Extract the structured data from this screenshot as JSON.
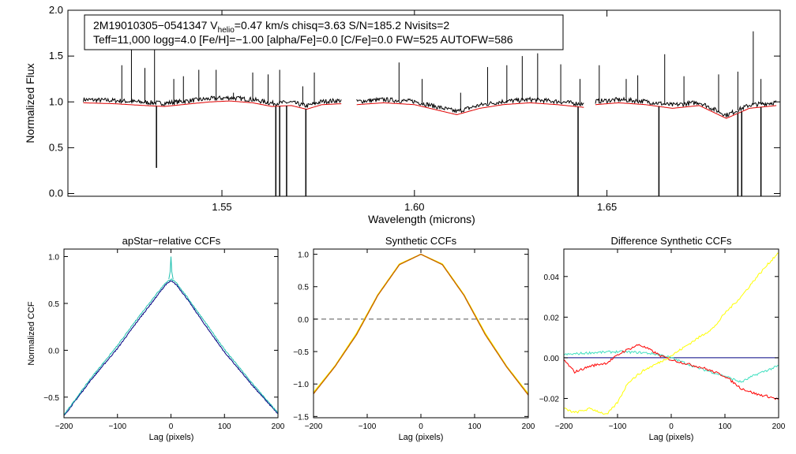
{
  "chart_data": [
    {
      "id": "spectrum",
      "type": "line",
      "title": "",
      "xlabel": "Wavelength (microns)",
      "ylabel": "Normalized Flux",
      "xlim": [
        1.51,
        1.695
      ],
      "ylim": [
        -0.03,
        2.0
      ],
      "xticks": [
        1.55,
        1.6,
        1.65
      ],
      "xtick_labels": [
        "1.55",
        "1.60",
        "1.65"
      ],
      "yticks": [
        0.0,
        0.5,
        1.0,
        1.5,
        2.0
      ],
      "ytick_labels": [
        "0.0",
        "0.5",
        "1.0",
        "1.5",
        "2.0"
      ],
      "info_box": {
        "line1": "2M19010305−0541347  V",
        "line1_sub": "helio",
        "line1_rest": "=0.47 km/s  chisq=3.63  S/N=185.2  Nvisits=2",
        "line2": "Teff=11,000 logg=4.0 [Fe/H]=−1.00 [alpha/Fe]=0.0 [C/Fe]=0.0 FW=525 AUTOFW=586"
      },
      "detector_ranges": [
        [
          1.514,
          1.581
        ],
        [
          1.585,
          1.644
        ],
        [
          1.647,
          1.694
        ]
      ],
      "model_continuum_points": {
        "x": [
          1.514,
          1.522,
          1.53,
          1.535,
          1.542,
          1.547,
          1.552,
          1.558,
          1.563,
          1.568,
          1.572,
          1.576,
          1.581,
          1.585,
          1.592,
          1.6,
          1.605,
          1.611,
          1.617,
          1.623,
          1.63,
          1.637,
          1.644,
          1.647,
          1.653,
          1.66,
          1.667,
          1.674,
          1.681,
          1.687,
          1.694
        ],
        "flux": [
          0.99,
          0.98,
          0.96,
          0.95,
          0.98,
          1.0,
          1.01,
          0.99,
          0.95,
          0.96,
          0.92,
          0.97,
          0.98,
          0.97,
          0.99,
          0.97,
          0.92,
          0.86,
          0.93,
          0.97,
          0.99,
          0.97,
          0.94,
          0.97,
          0.99,
          0.97,
          0.93,
          0.96,
          0.82,
          0.93,
          0.96
        ]
      },
      "series": [
        {
          "name": "observed",
          "color": "#000000"
        },
        {
          "name": "model",
          "color": "#e00000"
        }
      ],
      "emission_spikes": [
        {
          "x": 1.524,
          "flux": 1.4
        },
        {
          "x": 1.5265,
          "flux": 1.57
        },
        {
          "x": 1.53,
          "flux": 1.37
        },
        {
          "x": 1.5325,
          "flux": 1.65
        },
        {
          "x": 1.5375,
          "flux": 1.25
        },
        {
          "x": 1.54,
          "flux": 1.28
        },
        {
          "x": 1.544,
          "flux": 1.35
        },
        {
          "x": 1.5485,
          "flux": 1.35
        },
        {
          "x": 1.553,
          "flux": 1.1
        },
        {
          "x": 1.558,
          "flux": 1.32
        },
        {
          "x": 1.562,
          "flux": 1.3
        },
        {
          "x": 1.565,
          "flux": 1.35
        },
        {
          "x": 1.571,
          "flux": 1.17
        },
        {
          "x": 1.574,
          "flux": 1.32
        },
        {
          "x": 1.596,
          "flux": 1.43
        },
        {
          "x": 1.602,
          "flux": 1.25
        },
        {
          "x": 1.612,
          "flux": 1.1
        },
        {
          "x": 1.619,
          "flux": 1.38
        },
        {
          "x": 1.624,
          "flux": 1.4
        },
        {
          "x": 1.628,
          "flux": 1.5
        },
        {
          "x": 1.632,
          "flux": 1.53
        },
        {
          "x": 1.638,
          "flux": 1.41
        },
        {
          "x": 1.643,
          "flux": 1.25
        },
        {
          "x": 1.648,
          "flux": 1.4
        },
        {
          "x": 1.655,
          "flux": 1.25
        },
        {
          "x": 1.658,
          "flux": 1.29
        },
        {
          "x": 1.665,
          "flux": 1.52
        },
        {
          "x": 1.67,
          "flux": 1.28
        },
        {
          "x": 1.679,
          "flux": 1.3
        },
        {
          "x": 1.684,
          "flux": 1.33
        },
        {
          "x": 1.688,
          "flux": 1.77
        },
        {
          "x": 1.69,
          "flux": 1.25
        }
      ],
      "absorption_spikes": [
        {
          "x": 1.533,
          "flux": 0.28
        },
        {
          "x": 1.564,
          "flux": -0.05
        },
        {
          "x": 1.565,
          "flux": -0.05
        },
        {
          "x": 1.5668,
          "flux": -0.05
        },
        {
          "x": 1.5718,
          "flux": -0.05
        },
        {
          "x": 1.6425,
          "flux": -0.05
        },
        {
          "x": 1.6635,
          "flux": -0.05
        },
        {
          "x": 1.684,
          "flux": -0.05
        },
        {
          "x": 1.685,
          "flux": -0.05
        },
        {
          "x": 1.69,
          "flux": -0.05
        }
      ]
    },
    {
      "id": "apstar-ccf",
      "type": "line",
      "title": "apStar−relative CCFs",
      "xlabel": "Lag (pixels)",
      "ylabel": "Normalized CCF",
      "xlim": [
        -200,
        200
      ],
      "ylim": [
        -0.72,
        1.08
      ],
      "xticks": [
        -200,
        -100,
        0,
        100,
        200
      ],
      "xtick_labels": [
        "−200",
        "−100",
        "0",
        "100",
        "200"
      ],
      "yticks": [
        -0.5,
        0.0,
        0.5,
        1.0
      ],
      "ytick_labels": [
        "−0.5",
        "0.0",
        "0.5",
        "1.0"
      ],
      "series": [
        {
          "name": "visit-1",
          "color": "#000080",
          "x": [
            -200,
            -150,
            -100,
            -60,
            -30,
            -10,
            0,
            10,
            30,
            60,
            100,
            150,
            200
          ],
          "y": [
            -0.7,
            -0.32,
            0.02,
            0.33,
            0.55,
            0.7,
            0.74,
            0.7,
            0.55,
            0.3,
            -0.02,
            -0.36,
            -0.68
          ]
        },
        {
          "name": "visit-2",
          "color": "#20c0b0",
          "x": [
            -200,
            -150,
            -100,
            -60,
            -30,
            -10,
            0,
            10,
            30,
            60,
            100,
            150,
            200
          ],
          "y": [
            -0.69,
            -0.3,
            0.05,
            0.36,
            0.58,
            0.72,
            0.76,
            0.72,
            0.57,
            0.33,
            0.01,
            -0.34,
            -0.67
          ]
        }
      ],
      "peak_spike": {
        "x": 0,
        "y": 1.0
      }
    },
    {
      "id": "synthetic-ccf",
      "type": "line",
      "title": "Synthetic CCFs",
      "xlabel": "Lag (pixels)",
      "ylabel": "",
      "xlim": [
        -200,
        200
      ],
      "ylim": [
        -1.52,
        1.08
      ],
      "xticks": [
        -200,
        -100,
        0,
        100,
        200
      ],
      "xtick_labels": [
        "−200",
        "−100",
        "0",
        "100",
        "200"
      ],
      "yticks": [
        -1.5,
        -1.0,
        -0.5,
        0.0,
        0.5,
        1.0
      ],
      "ytick_labels": [
        "−1.5",
        "−1.0",
        "−0.5",
        "0.0",
        "0.5",
        "1.0"
      ],
      "zero_line": 0.0,
      "series": [
        {
          "name": "synthetic-1",
          "color": "#ffff00",
          "x": [
            -200,
            -160,
            -120,
            -80,
            -40,
            0,
            40,
            80,
            120,
            160,
            200
          ],
          "y": [
            -1.13,
            -0.72,
            -0.22,
            0.38,
            0.85,
            1.0,
            0.85,
            0.38,
            -0.22,
            -0.73,
            -1.15
          ]
        },
        {
          "name": "synthetic-2",
          "color": "#c86400",
          "x": [
            -200,
            -160,
            -120,
            -80,
            -40,
            0,
            40,
            80,
            120,
            160,
            200
          ],
          "y": [
            -1.15,
            -0.73,
            -0.24,
            0.37,
            0.84,
            1.0,
            0.84,
            0.37,
            -0.24,
            -0.74,
            -1.17
          ]
        }
      ]
    },
    {
      "id": "difference-ccf",
      "type": "line",
      "title": "Difference Synthetic CCFs",
      "xlabel": "Lag (pixels)",
      "ylabel": "",
      "xlim": [
        -200,
        200
      ],
      "ylim": [
        -0.0295,
        0.0535
      ],
      "xticks": [
        -200,
        -100,
        0,
        100,
        200
      ],
      "xtick_labels": [
        "−200",
        "−100",
        "0",
        "100",
        "200"
      ],
      "yticks": [
        -0.02,
        0.0,
        0.02,
        0.04
      ],
      "ytick_labels": [
        "−0.02",
        "0.00",
        "0.02",
        "0.04"
      ],
      "series": [
        {
          "name": "zero",
          "color": "#000080",
          "x": [
            -200,
            200
          ],
          "y": [
            0.0,
            0.0
          ]
        },
        {
          "name": "cyan-diff",
          "color": "#40e0c0",
          "x": [
            -200,
            -150,
            -100,
            -50,
            -20,
            0,
            50,
            100,
            130,
            160,
            200
          ],
          "y": [
            0.0015,
            0.0025,
            0.003,
            0.0025,
            0.0015,
            0.0,
            -0.005,
            -0.009,
            -0.012,
            -0.008,
            -0.004
          ]
        },
        {
          "name": "red-diff",
          "color": "#ff0000",
          "x": [
            -200,
            -180,
            -150,
            -120,
            -90,
            -60,
            -40,
            -20,
            0,
            30,
            60,
            100,
            130,
            160,
            180,
            200
          ],
          "y": [
            -0.001,
            -0.007,
            -0.004,
            -0.0025,
            0.003,
            0.0065,
            0.004,
            0.001,
            -0.001,
            -0.003,
            -0.005,
            -0.009,
            -0.015,
            -0.018,
            -0.019,
            -0.0205
          ]
        },
        {
          "name": "yellow-diff",
          "color": "#ffff00",
          "x": [
            -200,
            -180,
            -150,
            -120,
            -100,
            -80,
            -50,
            -20,
            0,
            40,
            80,
            100,
            130,
            160,
            200
          ],
          "y": [
            -0.025,
            -0.027,
            -0.025,
            -0.028,
            -0.022,
            -0.012,
            -0.006,
            -0.002,
            0.001,
            0.008,
            0.015,
            0.022,
            0.03,
            0.04,
            0.052
          ]
        }
      ]
    }
  ]
}
